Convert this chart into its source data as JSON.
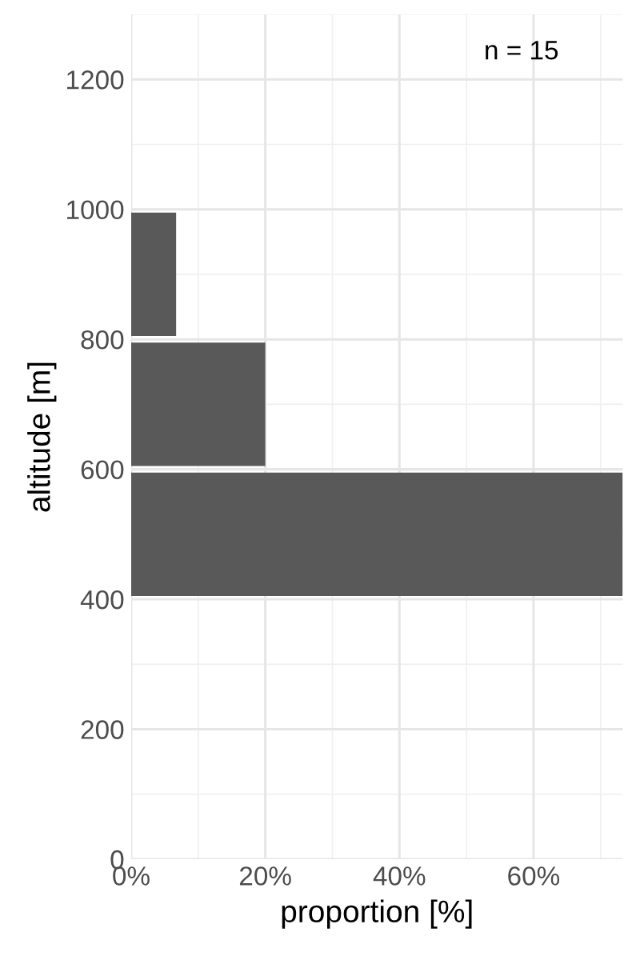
{
  "chart_data": {
    "type": "histogram",
    "orientation": "horizontal",
    "bins": [
      400,
      600,
      800,
      1000
    ],
    "values": [
      73.3,
      20,
      6.7
    ],
    "color": "#595959",
    "xlabel": "proportion [%]",
    "ylabel": "altitude [m]",
    "xlim": [
      0,
      73.3
    ],
    "xticks": [
      {
        "value": 0,
        "label": "0%"
      },
      {
        "value": 20,
        "label": "20%"
      },
      {
        "value": 40,
        "label": "40%"
      },
      {
        "value": 60,
        "label": "60%"
      }
    ],
    "ylim": [
      0,
      1300
    ],
    "yticks": [
      0,
      200,
      400,
      600,
      800,
      1000,
      1200
    ],
    "grid": true,
    "annotations": [
      "n = 15"
    ]
  }
}
